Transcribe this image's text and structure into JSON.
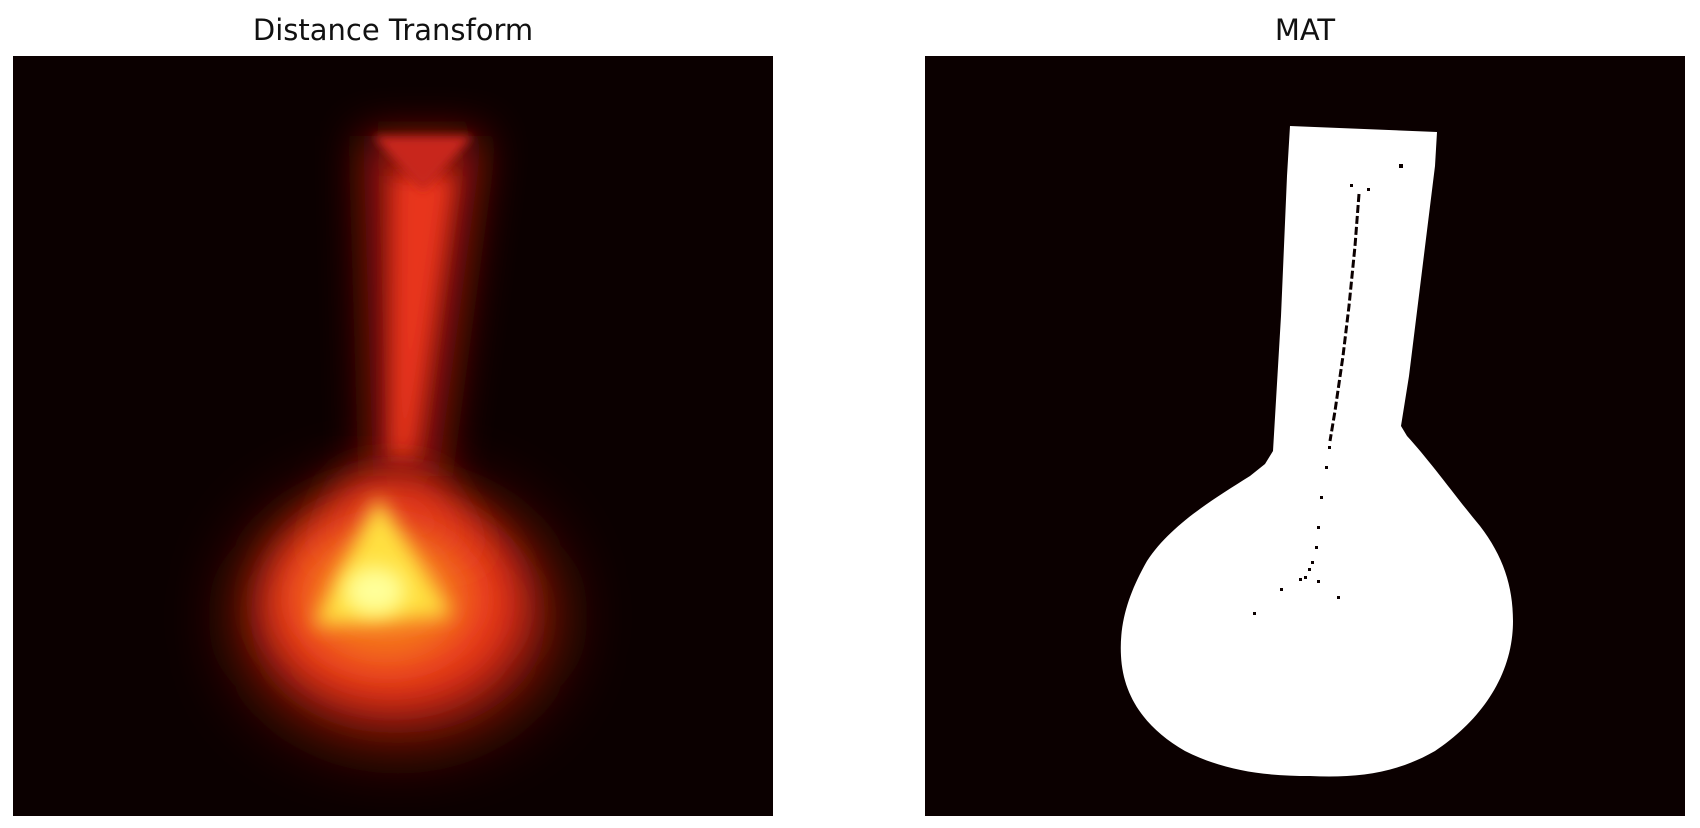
{
  "figure": {
    "panels": [
      {
        "title": "Distance Transform",
        "colormap": "hot",
        "background_color": "#0b0000"
      },
      {
        "title": "MAT",
        "colormap": "gray",
        "background_color": "#0b0000",
        "shape_color": "#ffffff"
      }
    ]
  },
  "colors": {
    "page_background": "#ffffff",
    "hot_dark": "#0b0000",
    "hot_red": "#e8341c",
    "hot_orange": "#f67a1e",
    "hot_yellow": "#ffff66",
    "mat_white": "#ffffff"
  }
}
